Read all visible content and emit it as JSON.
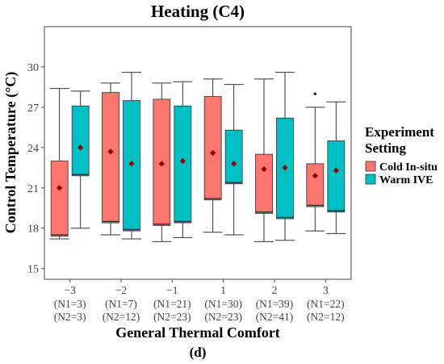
{
  "chart_data": {
    "type": "box",
    "title": "Heating (C4)",
    "xlabel": "General Thermal Comfort",
    "ylabel": "Control Temperature (°C)",
    "ylim": [
      14.2,
      33.0
    ],
    "yticks": [
      15,
      18,
      21,
      24,
      27,
      30
    ],
    "grid": false,
    "panel_label": "(d)",
    "legend": {
      "title_lines": [
        "Experiment",
        "Setting"
      ],
      "placement": "right"
    },
    "colors": {
      "Cold In-situ": "#f8766d",
      "Warm IVE": "#00bfc4",
      "mean_marker": "#8b0000"
    },
    "categories": [
      {
        "label": "−3",
        "n1": "(N1=3)",
        "n2": "(N2=3)"
      },
      {
        "label": "−2",
        "n1": "(N1=7)",
        "n2": "(N2=12)"
      },
      {
        "label": "−1",
        "n1": "(N1=21)",
        "n2": "(N2=23)"
      },
      {
        "label": "1",
        "n1": "(N1=30)",
        "n2": "(N2=23)"
      },
      {
        "label": "2",
        "n1": "(N1=39)",
        "n2": "(N2=41)"
      },
      {
        "label": "3",
        "n1": "(N1=22)",
        "n2": "(N2=12)"
      }
    ],
    "series": [
      {
        "name": "Cold In-situ",
        "boxes": [
          {
            "min": 17.2,
            "q1": 17.4,
            "median": 17.5,
            "q3": 23.0,
            "max": 28.4,
            "mean": 21.0
          },
          {
            "min": 17.5,
            "q1": 18.4,
            "median": 18.5,
            "q3": 28.1,
            "max": 28.8,
            "mean": 23.7
          },
          {
            "min": 17.0,
            "q1": 18.2,
            "median": 18.3,
            "q3": 27.6,
            "max": 28.8,
            "mean": 22.8
          },
          {
            "min": 17.7,
            "q1": 20.1,
            "median": 20.2,
            "q3": 27.8,
            "max": 29.1,
            "mean": 23.6
          },
          {
            "min": 17.0,
            "q1": 19.1,
            "median": 19.2,
            "q3": 23.5,
            "max": 29.1,
            "mean": 22.4
          },
          {
            "min": 17.8,
            "q1": 19.6,
            "median": 19.7,
            "q3": 22.8,
            "max": 27.0,
            "mean": 21.9,
            "outliers": [
              28.0
            ]
          }
        ]
      },
      {
        "name": "Warm IVE",
        "boxes": [
          {
            "min": 18.0,
            "q1": 21.9,
            "median": 22.0,
            "q3": 27.1,
            "max": 28.2,
            "mean": 24.0
          },
          {
            "min": 17.2,
            "q1": 17.8,
            "median": 17.9,
            "q3": 27.5,
            "max": 29.6,
            "mean": 22.8
          },
          {
            "min": 17.3,
            "q1": 18.4,
            "median": 18.5,
            "q3": 27.1,
            "max": 28.9,
            "mean": 23.0
          },
          {
            "min": 17.5,
            "q1": 21.3,
            "median": 21.4,
            "q3": 25.3,
            "max": 28.7,
            "mean": 22.8
          },
          {
            "min": 17.1,
            "q1": 18.7,
            "median": 18.8,
            "q3": 26.2,
            "max": 29.6,
            "mean": 22.5
          },
          {
            "min": 17.6,
            "q1": 19.2,
            "median": 19.3,
            "q3": 24.5,
            "max": 27.4,
            "mean": 22.3
          }
        ]
      }
    ]
  }
}
